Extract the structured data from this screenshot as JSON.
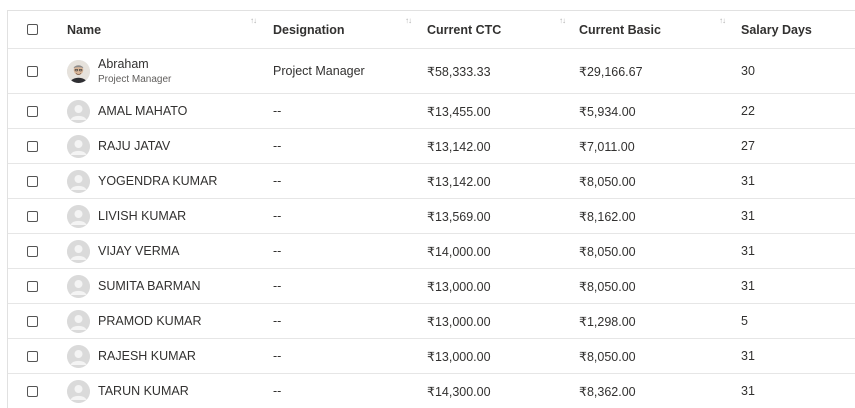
{
  "columns": {
    "name": "Name",
    "designation": "Designation",
    "ctc": "Current CTC",
    "basic": "Current Basic",
    "days": "Salary Days"
  },
  "sort_icon": "sort-arrows-icon",
  "rows": [
    {
      "name": "Abraham",
      "subtitle": "Project Manager",
      "designation": "Project Manager",
      "ctc": "₹58,333.33",
      "basic": "₹29,166.67",
      "days": "30",
      "avatar": "photo"
    },
    {
      "name": "AMAL MAHATO",
      "designation": "--",
      "ctc": "₹13,455.00",
      "basic": "₹5,934.00",
      "days": "22",
      "avatar": "placeholder"
    },
    {
      "name": "RAJU JATAV",
      "designation": "--",
      "ctc": "₹13,142.00",
      "basic": "₹7,011.00",
      "days": "27",
      "avatar": "placeholder"
    },
    {
      "name": "YOGENDRA KUMAR",
      "designation": "--",
      "ctc": "₹13,142.00",
      "basic": "₹8,050.00",
      "days": "31",
      "avatar": "placeholder"
    },
    {
      "name": "LIVISH KUMAR",
      "designation": "--",
      "ctc": "₹13,569.00",
      "basic": "₹8,162.00",
      "days": "31",
      "avatar": "placeholder"
    },
    {
      "name": "VIJAY VERMA",
      "designation": "--",
      "ctc": "₹14,000.00",
      "basic": "₹8,050.00",
      "days": "31",
      "avatar": "placeholder"
    },
    {
      "name": "SUMITA BARMAN",
      "designation": "--",
      "ctc": "₹13,000.00",
      "basic": "₹8,050.00",
      "days": "31",
      "avatar": "placeholder"
    },
    {
      "name": "PRAMOD KUMAR",
      "designation": "--",
      "ctc": "₹13,000.00",
      "basic": "₹1,298.00",
      "days": "5",
      "avatar": "placeholder"
    },
    {
      "name": "RAJESH KUMAR",
      "designation": "--",
      "ctc": "₹13,000.00",
      "basic": "₹8,050.00",
      "days": "31",
      "avatar": "placeholder"
    },
    {
      "name": "TARUN KUMAR",
      "designation": "--",
      "ctc": "₹14,300.00",
      "basic": "₹8,362.00",
      "days": "31",
      "avatar": "placeholder"
    }
  ]
}
